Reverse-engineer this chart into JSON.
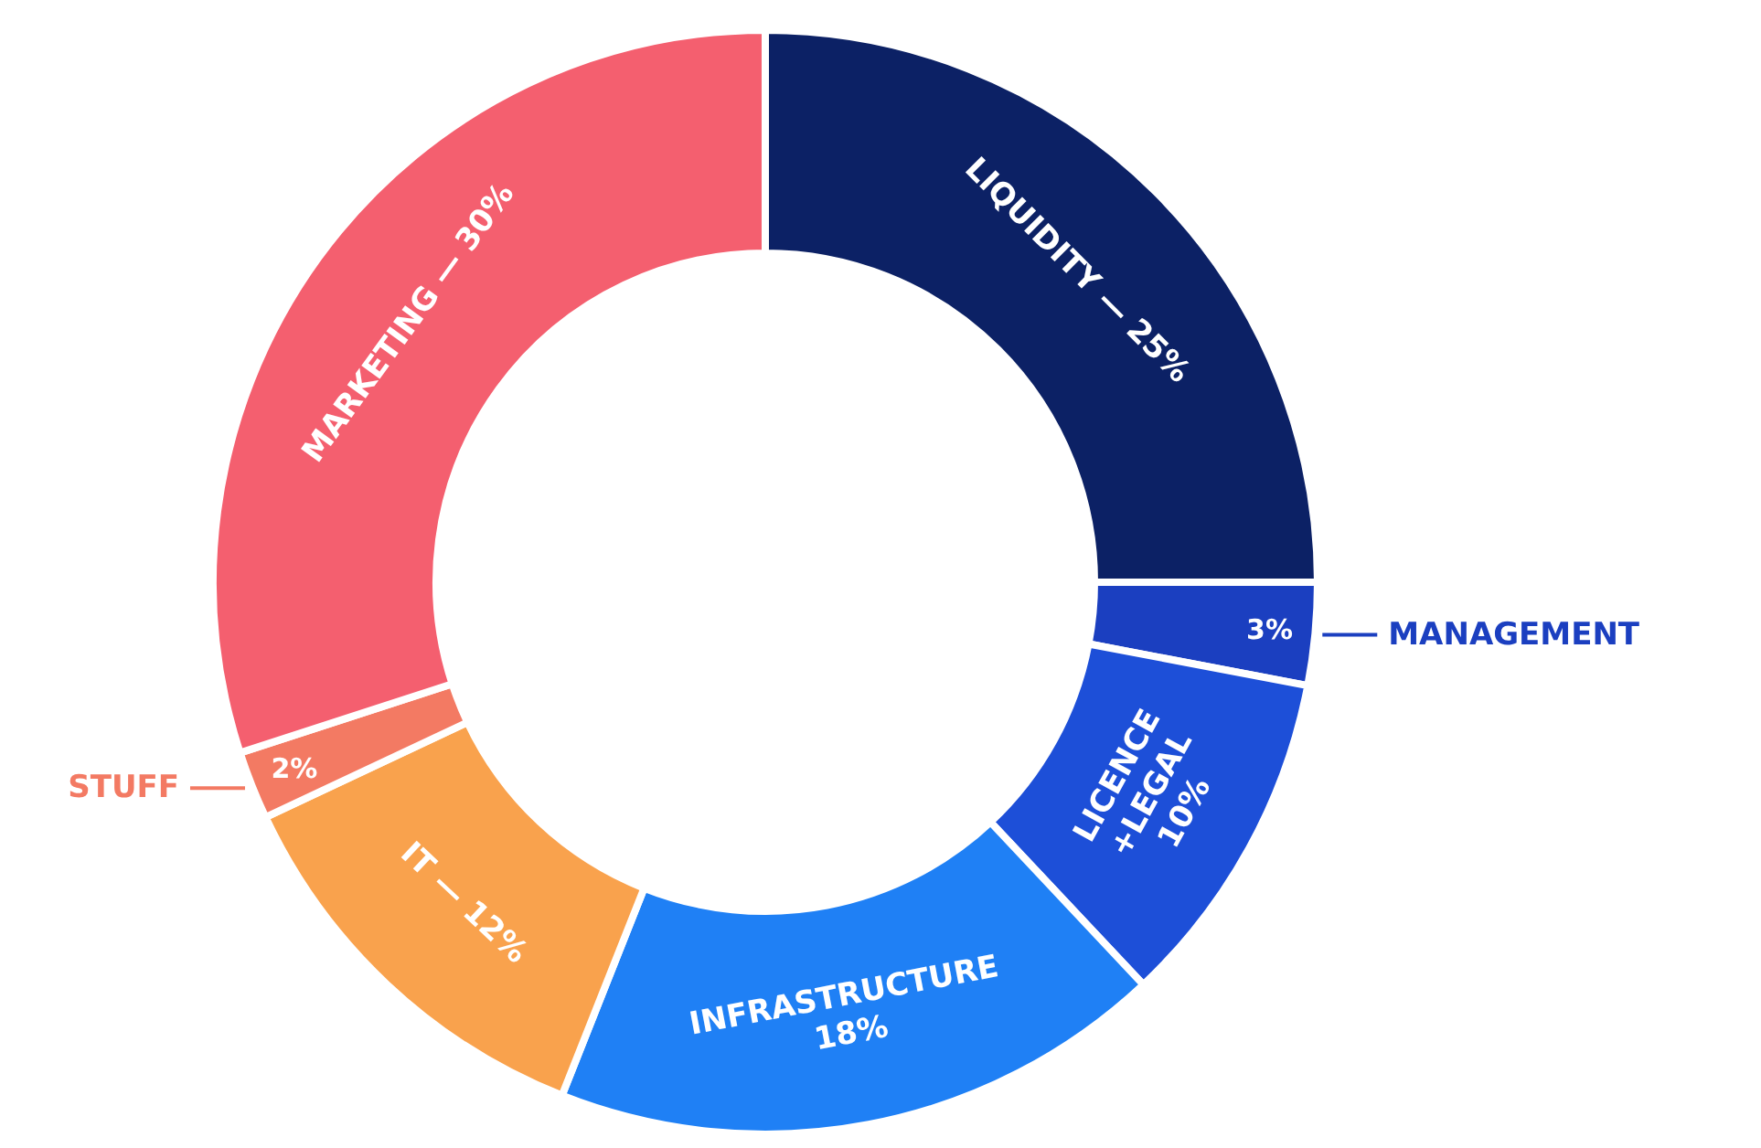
{
  "chart_data": {
    "type": "donut",
    "categories": [
      "LIQUIDITY — 25%",
      "MANAGEMENT",
      "LICENCE\n+LEGAL\n10%",
      "INFRASTRUCTURE\n18%",
      "IT — 12%",
      "STUFF",
      "MARKETING — 30%"
    ],
    "values": [
      25,
      3,
      10,
      18,
      12,
      2,
      30
    ],
    "colors": [
      "#0c2165",
      "#1b3fc0",
      "#1d4fd8",
      "#1f80f5",
      "#f9a24d",
      "#f37a63",
      "#f45f6f"
    ],
    "value_labels": [
      null,
      "3%",
      null,
      null,
      null,
      "2%",
      null
    ]
  }
}
